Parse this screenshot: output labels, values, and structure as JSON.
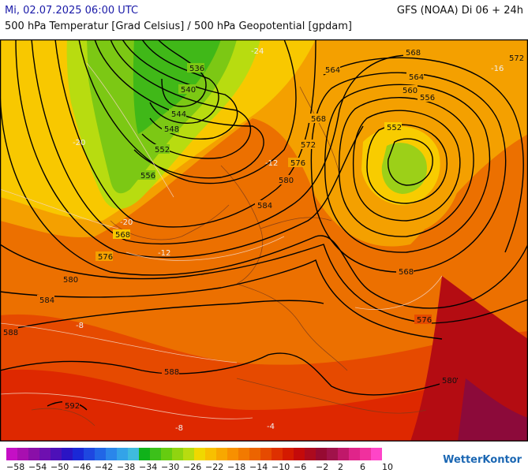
{
  "header": {
    "datetime": "Mi, 02.07.2025 06:00 UTC",
    "model": "GFS (NOAA) Di 06 + 24h",
    "title": "500 hPa Temperatur [Grad Celsius] / 500 hPa Geopotential [gpdam]"
  },
  "contours": [
    {
      "value": "536"
    },
    {
      "value": "540"
    },
    {
      "value": "544"
    },
    {
      "value": "548"
    },
    {
      "value": "552"
    },
    {
      "value": "556"
    },
    {
      "value": "560"
    },
    {
      "value": "564"
    },
    {
      "value": "568"
    },
    {
      "value": "572"
    },
    {
      "value": "576"
    },
    {
      "value": "580"
    },
    {
      "value": "584"
    },
    {
      "value": "588"
    },
    {
      "value": "592"
    }
  ],
  "temp_labels": [
    "-24",
    "-20",
    "-16",
    "-12",
    "-8",
    "-4"
  ],
  "legend": {
    "colors": [
      "#c50fc5",
      "#a80fb0",
      "#8a0fa8",
      "#6e0fb0",
      "#4d10b8",
      "#2b14c4",
      "#1a28d6",
      "#1e47e0",
      "#2166e6",
      "#2a86ea",
      "#33a3e8",
      "#3fbbde",
      "#10b21a",
      "#3cc01a",
      "#66cc10",
      "#90d410",
      "#b8dc10",
      "#f0d800",
      "#f8c000",
      "#f8a800",
      "#f89000",
      "#f27a00",
      "#ec6400",
      "#e64a00",
      "#de3000",
      "#d41a00",
      "#c40a0a",
      "#ac0a1e",
      "#960a32",
      "#a0124a",
      "#c0186a",
      "#e0248a",
      "#f0309e",
      "#fe45c8"
    ],
    "labels": [
      "−58",
      "−54",
      "−50",
      "−46",
      "−42",
      "−38",
      "−34",
      "−30",
      "−26",
      "−22",
      "−18",
      "−14",
      "−10",
      "−6",
      "−2",
      "2",
      "6",
      "10"
    ]
  },
  "brand": "WetterKontor"
}
